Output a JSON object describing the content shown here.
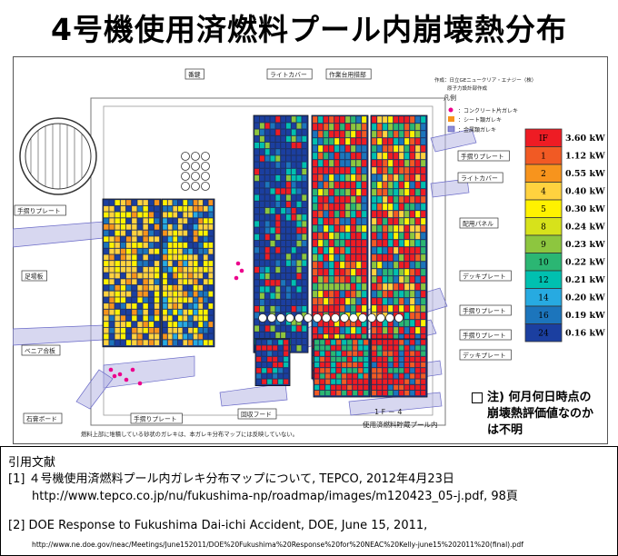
{
  "title": "4号機使用済燃料プール内崩壊熱分布",
  "diagram": {
    "credit_line1": "作成：日立GEニュークリア・エナジー（株）",
    "credit_line2": "原子力設計部作成",
    "labels": {
      "top_left": "番鍵",
      "top_mid": "ライトカバー",
      "top_right": "作業台用措部",
      "left1": "手摺りプレート",
      "left2": "足場板",
      "left3": "ベニア合板",
      "bottom_left": "石膏ボード",
      "bottom_mid": "手摺りプレート",
      "bottom_center": "回収フード",
      "right1": "手摺りプレート",
      "right2": "ライトカバー",
      "right3": "配用パネル",
      "right4": "デッキプレート",
      "right5": "手摺りプレート",
      "right6": "手摺りプレート",
      "right7": "デッキプレート",
      "unit_label": "1 F － 4",
      "pool_label": "使用済燃料貯蔵プール内",
      "footer_note": "燃料上部に堆積している砂状のガレキは、本ガレキ分布マップには反映していない。"
    },
    "legend_title": "凡例",
    "legend_items": [
      "：コンクリート片ガレキ",
      "：シート類ガレキ",
      "：金属類ガレキ"
    ],
    "heat_scale": [
      {
        "label": "IF",
        "value": "3.60 kW",
        "color": "#ee1c24"
      },
      {
        "label": "1",
        "value": "1.12 kW",
        "color": "#f15a24"
      },
      {
        "label": "2",
        "value": "0.55 kW",
        "color": "#f7941d"
      },
      {
        "label": "4",
        "value": "0.40 kW",
        "color": "#ffd23f"
      },
      {
        "label": "5",
        "value": "0.30 kW",
        "color": "#fff200"
      },
      {
        "label": "8",
        "value": "0.24 kW",
        "color": "#d7e21b"
      },
      {
        "label": "9",
        "value": "0.23 kW",
        "color": "#8dc63f"
      },
      {
        "label": "10",
        "value": "0.22 kW",
        "color": "#2bb673"
      },
      {
        "label": "12",
        "value": "0.21 kW",
        "color": "#00c0b0"
      },
      {
        "label": "14",
        "value": "0.20 kW",
        "color": "#27aae1"
      },
      {
        "label": "16",
        "value": "0.19 kW",
        "color": "#1c75bc"
      },
      {
        "label": "24",
        "value": "0.16 kW",
        "color": "#1b3fa0"
      }
    ]
  },
  "note_lines": [
    "注) 何月何日時点の",
    "崩壊熱評価値なのか",
    "は不明"
  ],
  "references": {
    "heading": "引用文献",
    "ref1_line1": "[1] ４号機使用済燃料プール内ガレキ分布マップについて, TEPCO, 2012年4月23日",
    "ref1_line2": "http://www.tepco.co.jp/nu/fukushima-np/roadmap/images/m120423_05-j.pdf, 98頁",
    "ref2_line1": "[2] DOE Response to Fukushima Dai-ichi Accident, DOE, June 15, 2011,",
    "ref2_line2": "http://www.ne.doe.gov/neac/Meetings/June152011/DOE%20Fukushima%20Response%20for%20NEAC%20Kelly-june15%202011%20(final).pdf"
  }
}
